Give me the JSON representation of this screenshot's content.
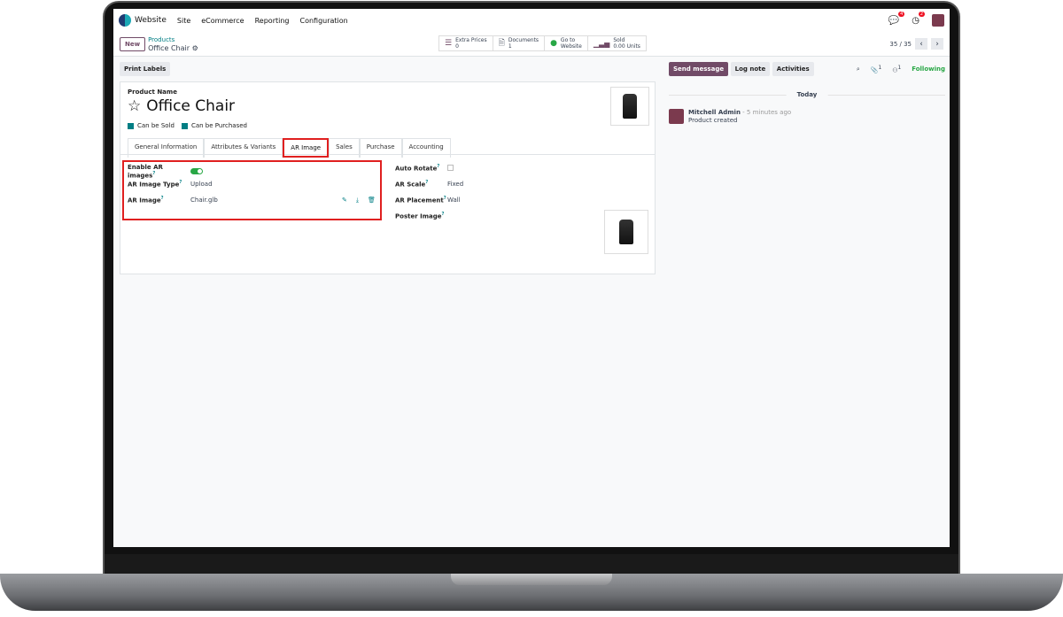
{
  "topbar": {
    "app": "Website",
    "menu": [
      "Site",
      "eCommerce",
      "Reporting",
      "Configuration"
    ],
    "chat_badge": "4",
    "activity_badge": "2"
  },
  "control": {
    "new": "New",
    "breadcrumb_parent": "Products",
    "breadcrumb_current": "Office Chair",
    "stats": [
      {
        "icon": "list-icon",
        "label": "Extra Prices",
        "value": "0"
      },
      {
        "icon": "document-icon",
        "label": "Documents",
        "value": "1"
      },
      {
        "icon": "globe-icon",
        "label": "Go to",
        "value": "Website"
      },
      {
        "icon": "bar-chart-icon",
        "label": "Sold",
        "value": "0.00 Units"
      }
    ],
    "pager": "35 / 35"
  },
  "form": {
    "print_labels": "Print Labels",
    "name_label": "Product Name",
    "name": "Office Chair",
    "can_be_sold": "Can be Sold",
    "can_be_purchased": "Can be Purchased",
    "tabs": [
      "General Information",
      "Attributes & Variants",
      "AR Image",
      "Sales",
      "Purchase",
      "Accounting"
    ],
    "active_tab": "AR Image",
    "left_fields": [
      {
        "label": "Enable AR images",
        "value": true
      },
      {
        "label": "AR Image Type",
        "value": "Upload"
      },
      {
        "label": "AR Image",
        "value": "Chair.glb"
      }
    ],
    "right_fields": [
      {
        "label": "Auto Rotate",
        "value": false
      },
      {
        "label": "AR Scale",
        "value": "Fixed"
      },
      {
        "label": "AR Placement",
        "value": "Wall"
      },
      {
        "label": "Poster Image",
        "value": ""
      }
    ]
  },
  "chatter": {
    "send": "Send message",
    "log": "Log note",
    "activities": "Activities",
    "attachments": "1",
    "followers": "1",
    "following": "Following",
    "today": "Today",
    "author": "Mitchell Admin",
    "time": "- 5 minutes ago",
    "message": "Product created"
  },
  "colors": {
    "brand": "#714b67",
    "accent": "#017e84",
    "highlight": "#e02020",
    "success": "#28a745"
  }
}
